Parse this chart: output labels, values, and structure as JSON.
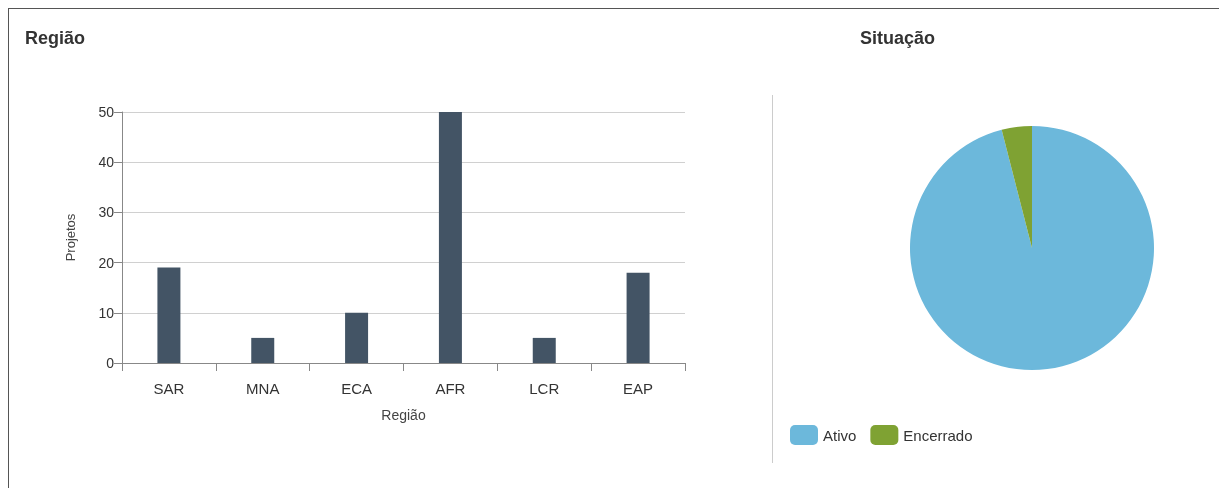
{
  "chart_data": [
    {
      "type": "bar",
      "title": "Região",
      "xlabel": "Região",
      "ylabel": "Projetos",
      "categories": [
        "SAR",
        "MNA",
        "ECA",
        "AFR",
        "LCR",
        "EAP"
      ],
      "values": [
        19,
        5,
        10,
        50,
        5,
        18
      ],
      "color": "#435465",
      "ylim": [
        0,
        50
      ],
      "yticks": [
        0,
        10,
        20,
        30,
        40,
        50
      ],
      "grid": "y",
      "legend": false
    },
    {
      "type": "pie",
      "title": "Situação",
      "categories": [
        "Ativo",
        "Encerrado"
      ],
      "values": [
        96,
        4
      ],
      "colors": [
        "#6cb8db",
        "#7fa233"
      ],
      "legend": "bottom left"
    }
  ]
}
